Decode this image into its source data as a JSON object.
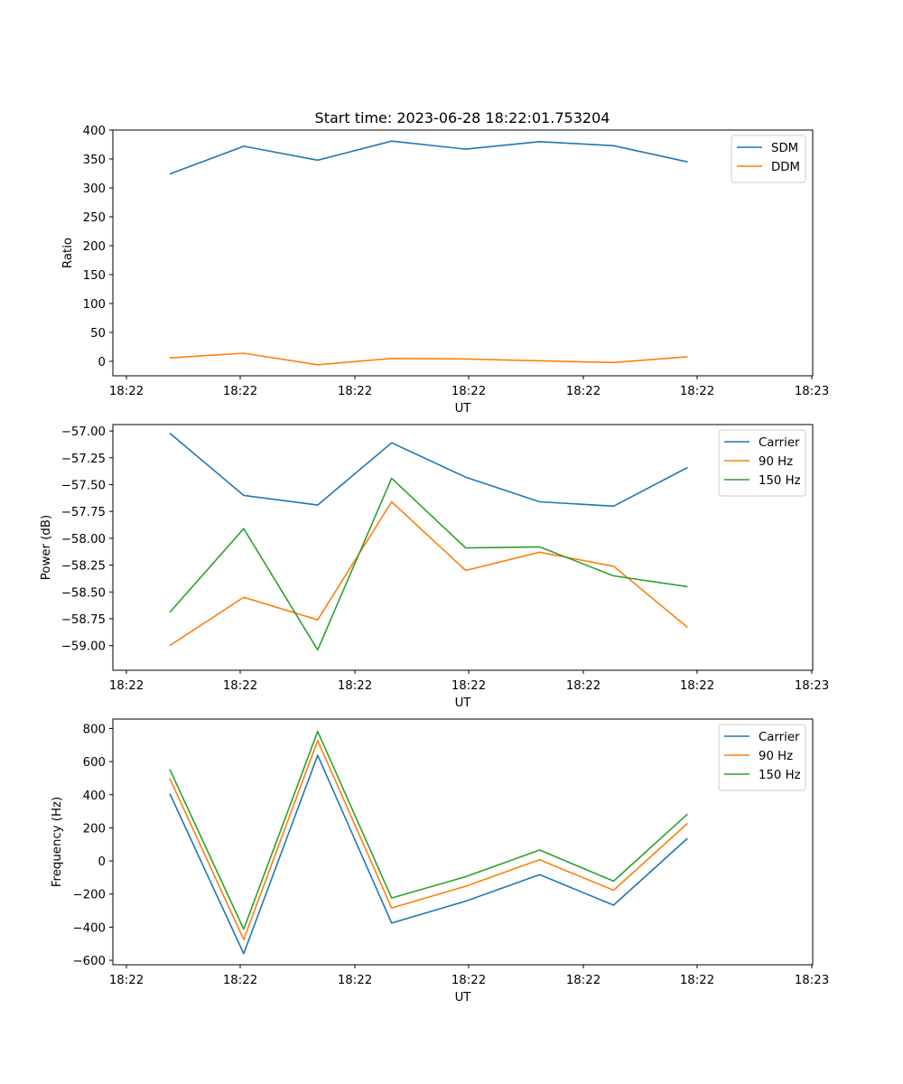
{
  "title": "Start time: 2023-06-28 18:22:01.753204",
  "colors": {
    "blue": "#1f77b4",
    "orange": "#ff7f0e",
    "green": "#2ca02c"
  },
  "chart_data": [
    {
      "type": "line",
      "title": "Start time: 2023-06-28 18:22:01.753204",
      "xlabel": "UT",
      "ylabel": "Ratio",
      "x_ticks": [
        "18:22",
        "18:22",
        "18:22",
        "18:22",
        "18:22",
        "18:22",
        "18:23"
      ],
      "xlim": [
        0,
        12.3
      ],
      "ylim": [
        -25,
        400
      ],
      "y_ticks": [
        0,
        50,
        100,
        150,
        200,
        250,
        300,
        350,
        400
      ],
      "legend": "upper right",
      "x": [
        1,
        2.3,
        3.6,
        4.9,
        6.2,
        7.5,
        8.8,
        10.1
      ],
      "series": [
        {
          "name": "SDM",
          "color": "#1f77b4",
          "values": [
            324,
            372,
            348,
            381,
            367,
            380,
            373,
            345
          ]
        },
        {
          "name": "DDM",
          "color": "#ff7f0e",
          "values": [
            6,
            14,
            -6,
            5,
            4,
            1,
            -2,
            8
          ]
        }
      ]
    },
    {
      "type": "line",
      "xlabel": "UT",
      "ylabel": "Power (dB)",
      "x_ticks": [
        "18:22",
        "18:22",
        "18:22",
        "18:22",
        "18:22",
        "18:22",
        "18:23"
      ],
      "xlim": [
        0,
        12.3
      ],
      "ylim": [
        -59.23,
        -56.94
      ],
      "y_ticks": [
        "−59.00",
        "−58.75",
        "−58.50",
        "−58.25",
        "−58.00",
        "−57.75",
        "−57.50",
        "−57.25",
        "−57.00"
      ],
      "y_tick_values": [
        -59.0,
        -58.75,
        -58.5,
        -58.25,
        -58.0,
        -57.75,
        -57.5,
        -57.25,
        -57.0
      ],
      "legend": "upper right",
      "x": [
        1,
        2.3,
        3.6,
        4.9,
        6.2,
        7.5,
        8.8,
        10.1
      ],
      "series": [
        {
          "name": "Carrier",
          "color": "#1f77b4",
          "values": [
            -57.02,
            -57.6,
            -57.69,
            -57.11,
            -57.43,
            -57.66,
            -57.7,
            -57.34
          ]
        },
        {
          "name": "90 Hz",
          "color": "#ff7f0e",
          "values": [
            -59.0,
            -58.55,
            -58.76,
            -57.66,
            -58.3,
            -58.13,
            -58.26,
            -58.83
          ]
        },
        {
          "name": "150 Hz",
          "color": "#2ca02c",
          "values": [
            -58.69,
            -57.91,
            -59.04,
            -57.44,
            -58.09,
            -58.08,
            -58.35,
            -58.45
          ]
        }
      ]
    },
    {
      "type": "line",
      "xlabel": "UT",
      "ylabel": "Frequency (Hz)",
      "x_ticks": [
        "18:22",
        "18:22",
        "18:22",
        "18:22",
        "18:22",
        "18:22",
        "18:23"
      ],
      "xlim": [
        0,
        12.3
      ],
      "ylim": [
        -627,
        857
      ],
      "y_ticks": [
        "−600",
        "−400",
        "−200",
        "0",
        "200",
        "400",
        "600",
        "800"
      ],
      "y_tick_values": [
        -600,
        -400,
        -200,
        0,
        200,
        400,
        600,
        800
      ],
      "legend": "upper right",
      "x": [
        1,
        2.3,
        3.6,
        4.9,
        6.2,
        7.5,
        8.8,
        10.1
      ],
      "series": [
        {
          "name": "Carrier",
          "color": "#1f77b4",
          "values": [
            407,
            -560,
            638,
            -375,
            -243,
            -83,
            -267,
            137
          ]
        },
        {
          "name": "90 Hz",
          "color": "#ff7f0e",
          "values": [
            499,
            -475,
            727,
            -284,
            -153,
            7,
            -177,
            227
          ]
        },
        {
          "name": "150 Hz",
          "color": "#2ca02c",
          "values": [
            553,
            -412,
            782,
            -224,
            -95,
            66,
            -122,
            283
          ]
        }
      ]
    }
  ]
}
